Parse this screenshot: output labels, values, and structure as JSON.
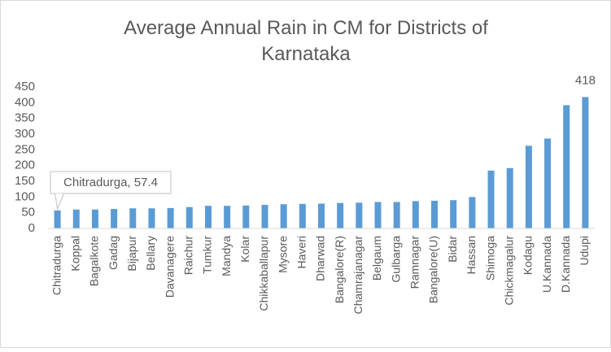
{
  "chart_data": {
    "type": "bar",
    "title": "Average Annual Rain in CM for Districts of Karnataka",
    "categories": [
      "Chitradurga",
      "Koppal",
      "Bagalkote",
      "Gadag",
      "Bijapur",
      "Bellary",
      "Davanagere",
      "Raichur",
      "Tumkur",
      "Mandya",
      "Kolar",
      "Chikkaballapur",
      "Mysore",
      "Haveri",
      "Dharwad",
      "Bangalore(R)",
      "Chamrajanagar",
      "Belgaum",
      "Gulbarga",
      "Ramnagar",
      "Bangalore(U)",
      "Bidar",
      "Hassan",
      "Shimoga",
      "Chickmagalur",
      "Kodagu",
      "U.Kannada",
      "D.Kannada",
      "Udupi"
    ],
    "values": [
      57.4,
      60,
      60,
      62,
      64,
      64,
      65,
      68,
      72,
      72,
      73,
      75,
      77,
      78,
      79,
      81,
      82,
      84,
      84,
      87,
      88,
      90,
      100,
      184,
      192,
      263,
      286,
      392,
      418
    ],
    "value_labels": [
      "Chitradurga, 57.4",
      null,
      null,
      null,
      null,
      null,
      null,
      null,
      null,
      null,
      null,
      null,
      null,
      null,
      null,
      null,
      null,
      null,
      null,
      null,
      null,
      null,
      null,
      null,
      null,
      null,
      null,
      null,
      "418"
    ],
    "color": "#5b9bd5",
    "ylim": [
      0,
      450
    ],
    "yticks": [
      0,
      50,
      100,
      150,
      200,
      250,
      300,
      350,
      400,
      450
    ],
    "grid": false
  }
}
